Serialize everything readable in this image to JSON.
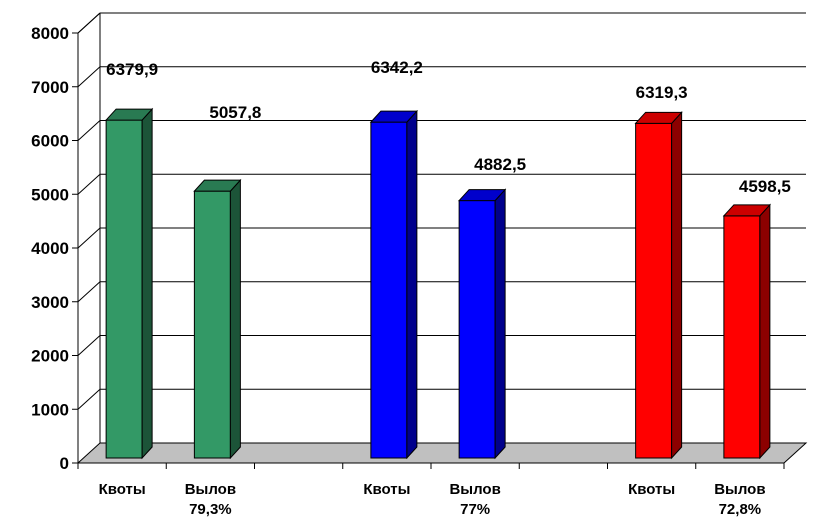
{
  "chart_data": {
    "type": "bar",
    "style": "3d-column",
    "title": "",
    "xlabel": "",
    "ylabel": "",
    "ylim": [
      0,
      8000
    ],
    "yticks": [
      0,
      1000,
      2000,
      3000,
      4000,
      5000,
      6000,
      7000,
      8000
    ],
    "grid": true,
    "legend": "none",
    "groups": [
      {
        "color": "#339966",
        "bars": [
          {
            "category": "Квоты",
            "sublabel": "",
            "value": 6379.9,
            "label": "6379,9"
          },
          {
            "category": "Вылов",
            "sublabel": "79,3%",
            "value": 5057.8,
            "label": "5057,8"
          }
        ]
      },
      {
        "color": "#0000ff",
        "bars": [
          {
            "category": "Квоты",
            "sublabel": "",
            "value": 6342.2,
            "label": "6342,2"
          },
          {
            "category": "Вылов",
            "sublabel": "77%",
            "value": 4882.5,
            "label": "4882,5"
          }
        ]
      },
      {
        "color": "#ff0000",
        "bars": [
          {
            "category": "Квоты",
            "sublabel": "",
            "value": 6319.3,
            "label": "6319,3"
          },
          {
            "category": "Вылов",
            "sublabel": "72,8%",
            "value": 4598.5,
            "label": "4598,5"
          }
        ]
      }
    ],
    "colors": {
      "floor": "#c0c0c0",
      "gridline": "#000000",
      "background": "#ffffff"
    }
  }
}
